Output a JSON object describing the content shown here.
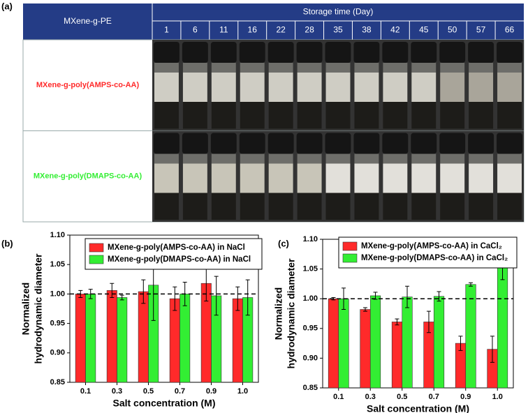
{
  "panels": [
    "(a)",
    "(b)",
    "(c)"
  ],
  "table": {
    "corner": "MXene-g-PE",
    "header": "Storage time (Day)",
    "days": [
      "1",
      "6",
      "11",
      "16",
      "22",
      "28",
      "35",
      "38",
      "42",
      "45",
      "50",
      "57",
      "66"
    ],
    "rows": [
      {
        "label": "MXene-g-poly(AMPS-co-AA)",
        "color": "#ff2a2a"
      },
      {
        "label": "MXene-g-poly(DMAPS-co-AA)",
        "color": "#33ee33"
      }
    ]
  },
  "chart_data": [
    {
      "type": "bar",
      "categories": [
        "0.1",
        "0.3",
        "0.5",
        "0.7",
        "0.9",
        "1.0"
      ],
      "xlabel": "Salt concentration (M)",
      "ylabel": [
        "Normalized",
        "hydrodynamic diameter"
      ],
      "ylim": [
        0.85,
        1.1
      ],
      "yticks": [
        {
          "value": 0.85,
          "label": "0.85"
        },
        {
          "value": 0.9,
          "label": "0.90"
        },
        {
          "value": 0.95,
          "label": "0.95"
        },
        {
          "value": 1.0,
          "label": "1.00"
        },
        {
          "value": 1.05,
          "label": "1.05"
        },
        {
          "value": 1.1,
          "label": "1.10"
        }
      ],
      "hline": 1,
      "series": [
        {
          "name": "MXene-g-poly(AMPS-co-AA) in NaCl",
          "color": "#ff2a2a",
          "values": [
            1.0,
            1.006,
            1.004,
            0.992,
            1.018,
            0.992
          ],
          "errors": [
            0.006,
            0.012,
            0.02,
            0.02,
            0.03,
            0.02
          ]
        },
        {
          "name": "MXene-g-poly(DMAPS-co-AA) in NaCl",
          "color": "#33ee33",
          "values": [
            1.0,
            0.994,
            1.015,
            1.0,
            0.997,
            0.994
          ],
          "errors": [
            0.008,
            0.004,
            0.06,
            0.02,
            0.033,
            0.03
          ]
        }
      ]
    },
    {
      "type": "bar",
      "categories": [
        "0.1",
        "0.3",
        "0.5",
        "0.7",
        "0.9",
        "1.0"
      ],
      "xlabel": "Salt concentration (M)",
      "ylabel": [
        "Normalized",
        "hydrodynamic diameter"
      ],
      "ylim": [
        0.85,
        1.1
      ],
      "yticks": [
        {
          "value": 0.85,
          "label": "0.85"
        },
        {
          "value": 0.9,
          "label": "0.90"
        },
        {
          "value": 0.95,
          "label": "0.95"
        },
        {
          "value": 1.0,
          "label": "1.00"
        },
        {
          "value": 1.05,
          "label": "1.05"
        },
        {
          "value": 1.1,
          "label": "1.10"
        }
      ],
      "hline": 1,
      "series": [
        {
          "name": "MXene-g-poly(AMPS-co-AA) in CaCl₂",
          "color": "#ff2a2a",
          "values": [
            1.0,
            0.982,
            0.961,
            0.961,
            0.925,
            0.915
          ],
          "errors": [
            0.002,
            0.003,
            0.005,
            0.018,
            0.012,
            0.022
          ]
        },
        {
          "name": "MXene-g-poly(DMAPS-co-AA) in CaCl₂",
          "color": "#33ee33",
          "values": [
            1.0,
            1.005,
            1.003,
            1.004,
            1.024,
            1.062
          ],
          "errors": [
            0.018,
            0.006,
            0.018,
            0.008,
            0.003,
            0.03
          ]
        }
      ]
    }
  ]
}
